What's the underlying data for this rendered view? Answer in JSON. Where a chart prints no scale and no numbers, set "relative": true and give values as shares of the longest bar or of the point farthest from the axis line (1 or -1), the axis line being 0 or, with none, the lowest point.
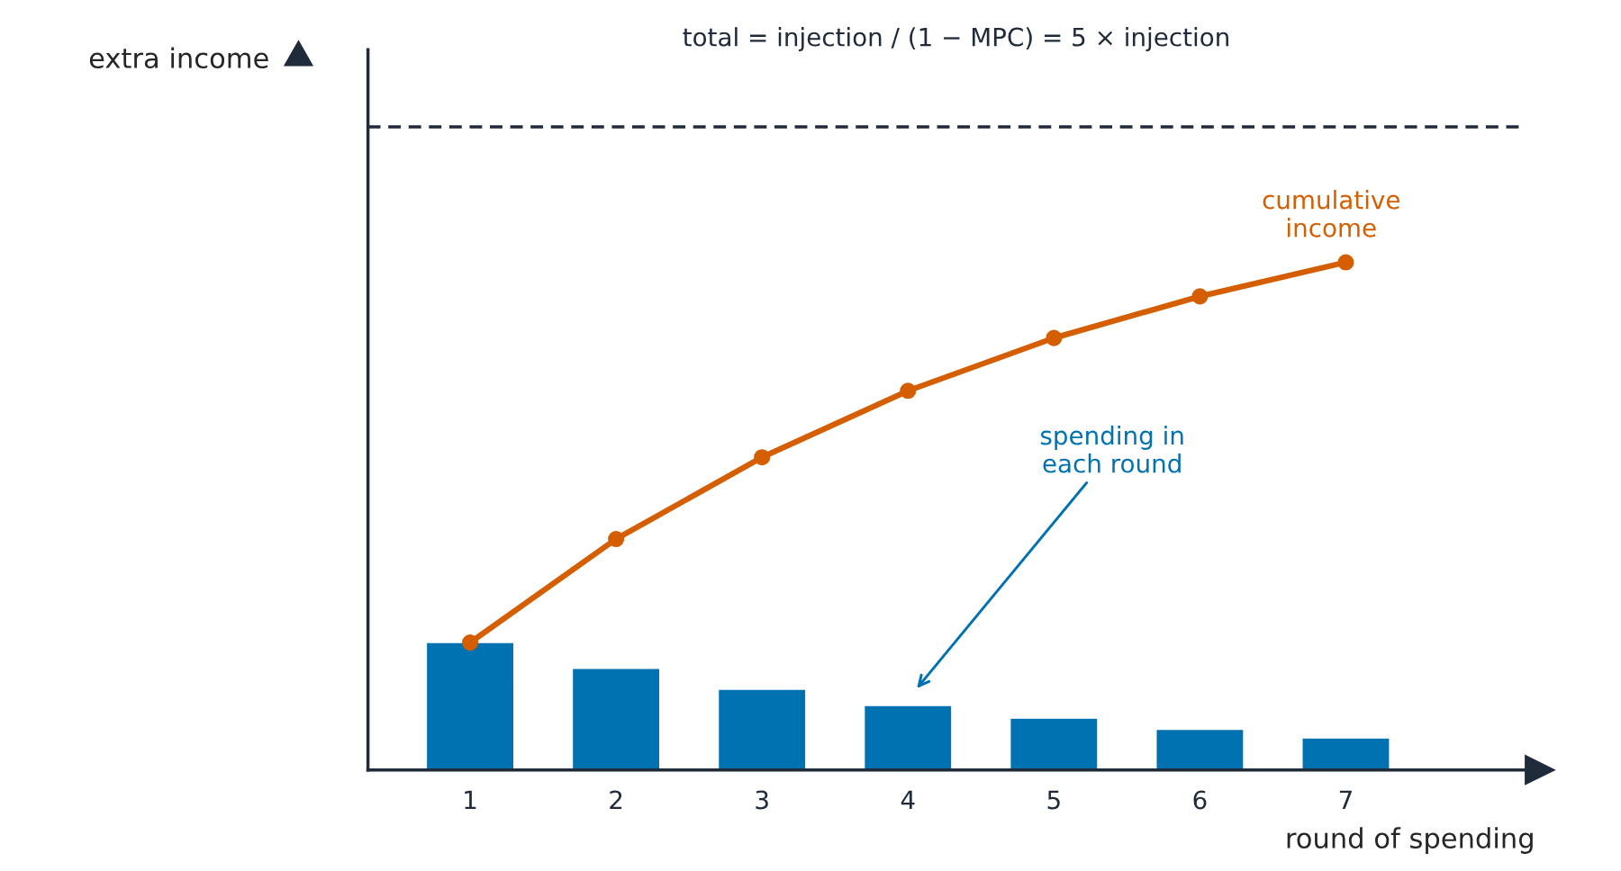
{
  "chart_data": {
    "type": "bar",
    "title": "total = injection / (1 − MPC) = 5 × injection",
    "xlabel": "round of spending",
    "annotations": [
      "extra income"
    ],
    "relative": true,
    "categories": [
      "1",
      "2",
      "3",
      "4",
      "5",
      "6",
      "7"
    ],
    "series": [
      {
        "name": "spending in each round",
        "type": "bar",
        "color": "#0072b2",
        "values": [
          0.251,
          0.2,
          0.159,
          0.127,
          0.102,
          0.08,
          0.063
        ]
      },
      {
        "name": "cumulative income",
        "type": "line",
        "color": "#d55e00",
        "marker": "circle",
        "line_style": "solid",
        "values": [
          0.251,
          0.455,
          0.616,
          0.747,
          0.851,
          0.933,
          1.0
        ]
      }
    ],
    "ref_lines": [
      {
        "axis": "y",
        "value": 1.267,
        "color": "#1f2a3a",
        "line_style": "dashed"
      }
    ],
    "grid": false,
    "legend": false
  }
}
